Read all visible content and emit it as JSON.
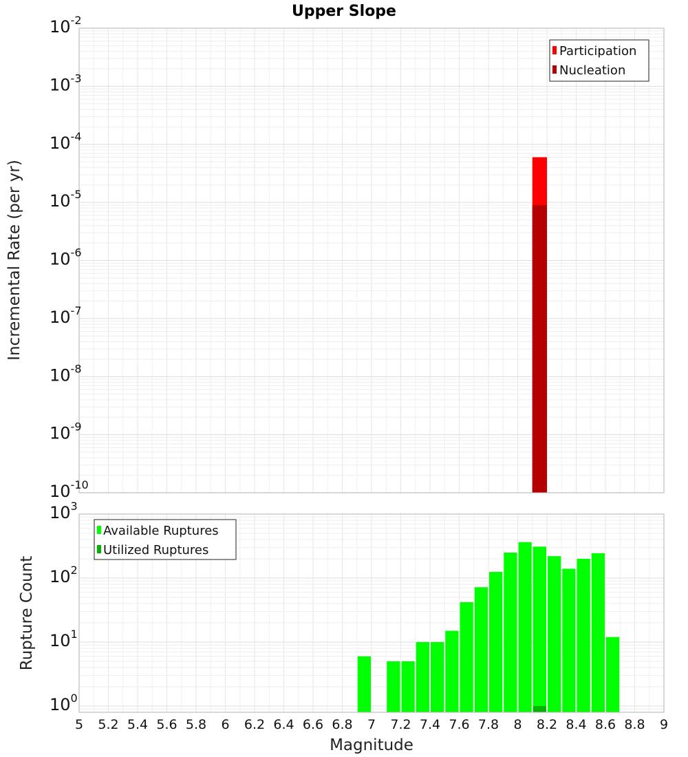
{
  "chart_data": [
    {
      "type": "bar",
      "title": "Upper Slope",
      "ylabel": "Incremental Rate (per yr)",
      "xlim": [
        5,
        9
      ],
      "ylim": [
        1e-10,
        0.01
      ],
      "yscale": "log",
      "ytick_base": "10",
      "yticks": [
        {
          "exp": "-10",
          "value": 1e-10
        },
        {
          "exp": "-9",
          "value": 1e-09
        },
        {
          "exp": "-8",
          "value": 1e-08
        },
        {
          "exp": "-7",
          "value": 1e-07
        },
        {
          "exp": "-6",
          "value": 1e-06
        },
        {
          "exp": "-5",
          "value": 1e-05
        },
        {
          "exp": "-4",
          "value": 0.0001
        },
        {
          "exp": "-3",
          "value": 0.001
        },
        {
          "exp": "-2",
          "value": 0.01
        }
      ],
      "grid": true,
      "legend_position": "top-right",
      "bin_width": 0.1,
      "series": [
        {
          "name": "Participation",
          "color": "#ff0000",
          "x": [
            8.15
          ],
          "values": [
            6e-05
          ]
        },
        {
          "name": "Nucleation",
          "color": "#b40000",
          "x": [
            8.15
          ],
          "values": [
            9e-06
          ]
        }
      ]
    },
    {
      "type": "bar",
      "ylabel": "Rupture Count",
      "xlabel": "Magnitude",
      "xlim": [
        5,
        9
      ],
      "ylim": [
        0.8,
        1000
      ],
      "yscale": "log",
      "ytick_base": "10",
      "yticks": [
        {
          "exp": "0",
          "value": 1
        },
        {
          "exp": "1",
          "value": 10
        },
        {
          "exp": "2",
          "value": 100
        },
        {
          "exp": "3",
          "value": 1000
        }
      ],
      "xticks": [
        "5",
        "5.2",
        "5.4",
        "5.6",
        "5.8",
        "6",
        "6.2",
        "6.4",
        "6.6",
        "6.8",
        "7",
        "7.2",
        "7.4",
        "7.6",
        "7.8",
        "8",
        "8.2",
        "8.4",
        "8.6",
        "8.8",
        "9"
      ],
      "grid": true,
      "legend_position": "top-left",
      "bin_width": 0.1,
      "series": [
        {
          "name": "Available Ruptures",
          "color": "#00ff00",
          "x": [
            6.95,
            7.15,
            7.25,
            7.35,
            7.45,
            7.55,
            7.65,
            7.75,
            7.85,
            7.95,
            8.05,
            8.15,
            8.25,
            8.35,
            8.45,
            8.55,
            8.65
          ],
          "values": [
            6,
            5,
            5,
            10,
            10,
            15,
            42,
            72,
            125,
            250,
            365,
            310,
            220,
            140,
            200,
            245,
            12
          ]
        },
        {
          "name": "Utilized Ruptures",
          "color": "#00b400",
          "x": [
            8.15
          ],
          "values": [
            1
          ]
        }
      ]
    }
  ]
}
